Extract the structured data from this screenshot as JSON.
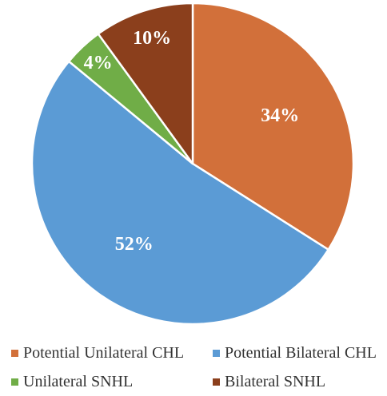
{
  "chart_data": {
    "type": "pie",
    "title": "",
    "start_angle_deg": 0,
    "direction": "clockwise",
    "slices": [
      {
        "name": "Potential Unilateral CHL",
        "value": 34,
        "label": "34%",
        "color": "#d2703a"
      },
      {
        "name": "Potential Bilateral CHL",
        "value": 52,
        "label": "52%",
        "color": "#5b9bd5"
      },
      {
        "name": "Unilateral SNHL",
        "value": 4,
        "label": "4%",
        "color": "#70ad47"
      },
      {
        "name": "Bilateral SNHL",
        "value": 10,
        "label": "10%",
        "color": "#8b3f1c"
      }
    ],
    "legend_position": "bottom"
  }
}
